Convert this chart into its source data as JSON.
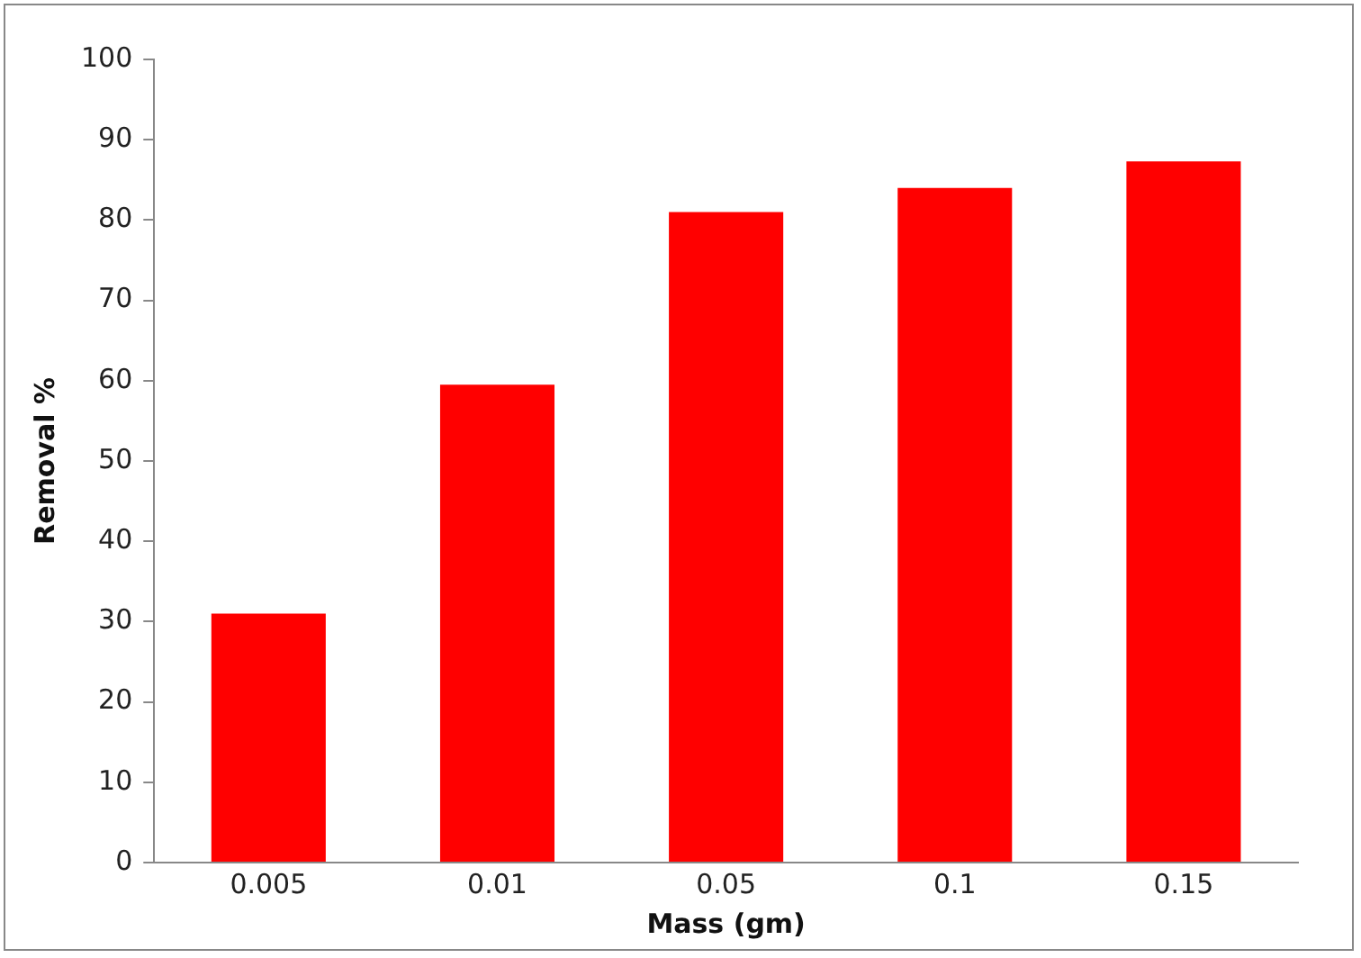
{
  "chart_data": {
    "type": "bar",
    "xlabel": "Mass (gm)",
    "ylabel": "Removal %",
    "categories": [
      "0.005",
      "0.01",
      "0.05",
      "0.1",
      "0.15"
    ],
    "values": [
      31,
      59.5,
      81,
      84,
      87.3
    ],
    "color": "#ff0000",
    "ylim": [
      0,
      100
    ],
    "yticks": [
      0,
      10,
      20,
      30,
      40,
      50,
      60,
      70,
      80,
      90,
      100
    ],
    "grid": false,
    "legend": false
  }
}
